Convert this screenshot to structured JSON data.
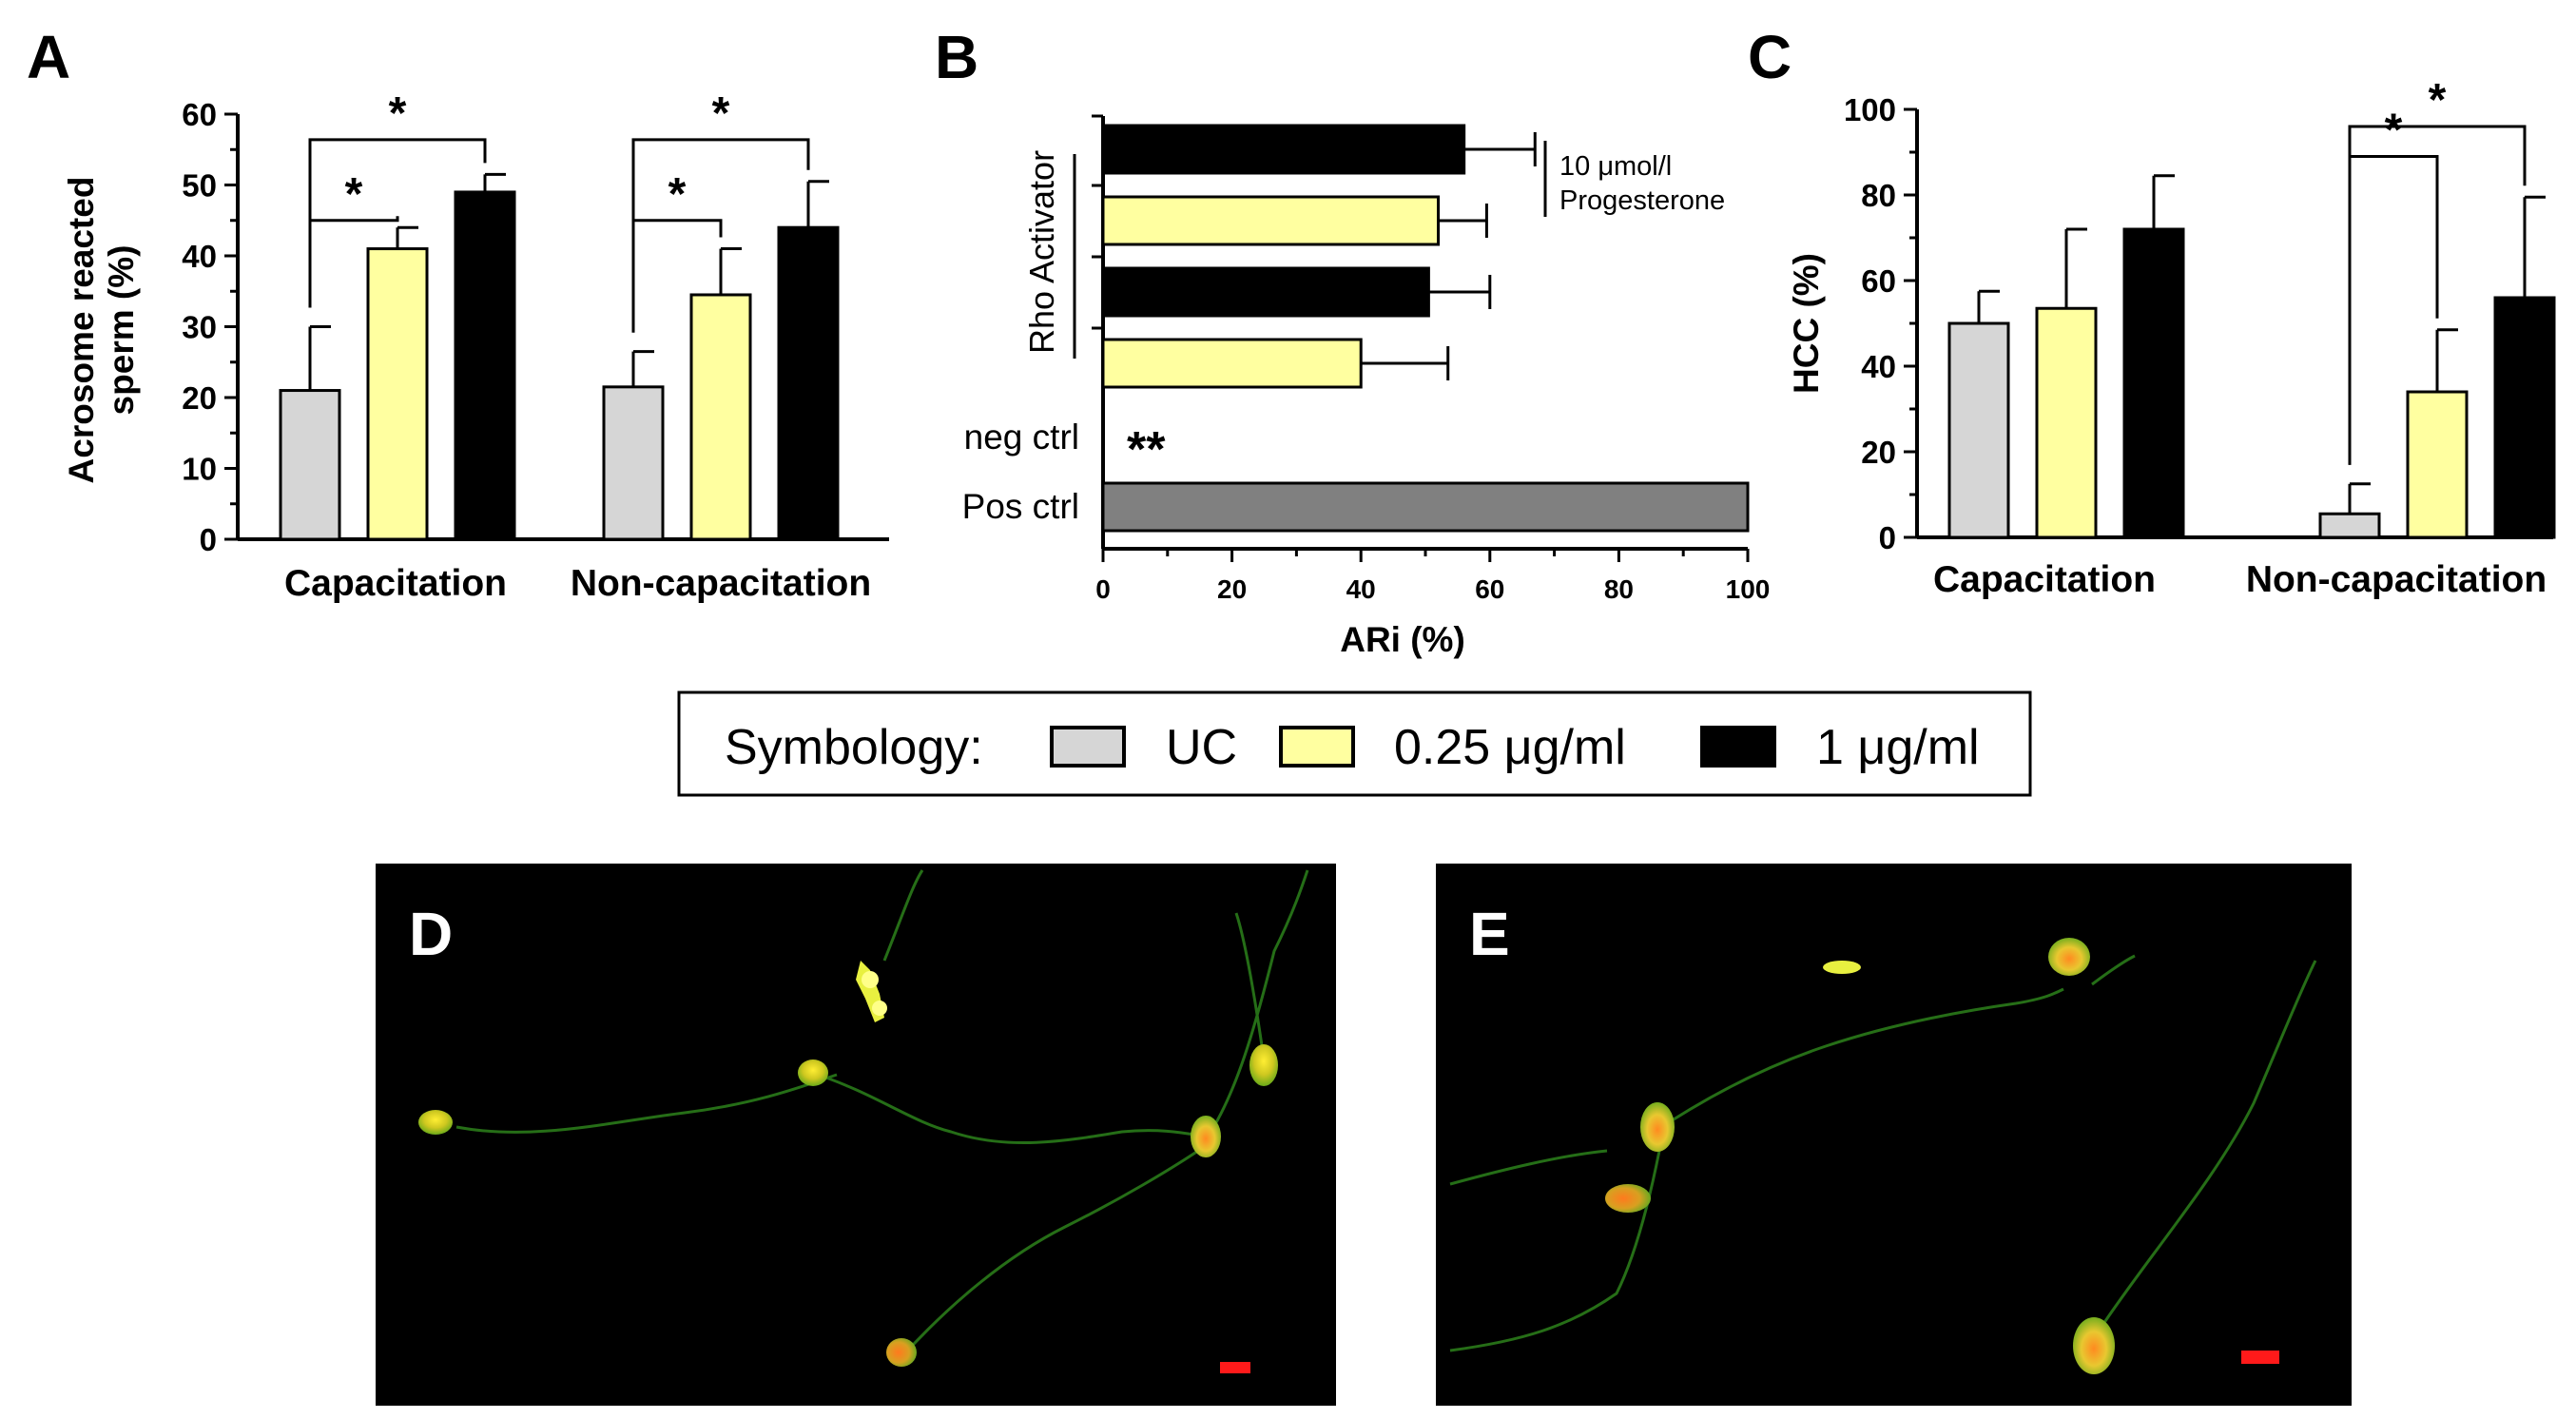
{
  "colors": {
    "UC": "#d6d6d6",
    "low": "#ffffa0",
    "high": "#000000",
    "pos_ctrl": "#808080"
  },
  "chart_data": [
    {
      "panel": "A",
      "type": "bar",
      "ylabel": "Acrosome reacted sperm (%)",
      "ylabel_lines": [
        "Acrosome reacted",
        "sperm (%)"
      ],
      "ylim": [
        0,
        60
      ],
      "yticks": [
        0,
        10,
        20,
        30,
        40,
        50,
        60
      ],
      "categories": [
        "Capacitation",
        "Non-capacitation"
      ],
      "series": [
        {
          "name": "UC",
          "values": [
            21,
            21.5
          ],
          "errors": [
            9,
            5
          ]
        },
        {
          "name": "0.25 μg/ml",
          "values": [
            41,
            34.5
          ],
          "errors": [
            3,
            6.5
          ]
        },
        {
          "name": "1 μg/ml",
          "values": [
            49,
            44
          ],
          "errors": [
            2.5,
            6.5
          ]
        }
      ],
      "significance": [
        {
          "group": 0,
          "from": 0,
          "to": 1,
          "label": "*"
        },
        {
          "group": 0,
          "from": 0,
          "to": 2,
          "label": "*"
        },
        {
          "group": 1,
          "from": 0,
          "to": 1,
          "label": "*"
        },
        {
          "group": 1,
          "from": 0,
          "to": 2,
          "label": "*"
        }
      ]
    },
    {
      "panel": "B",
      "type": "bar",
      "orientation": "horizontal",
      "xlabel": "ARi (%)",
      "xlim": [
        0,
        100
      ],
      "xticks": [
        0,
        20,
        40,
        60,
        80,
        100
      ],
      "group_label": "Rho Activator",
      "bars": [
        {
          "name": "1 μg/ml",
          "value": 56,
          "error": 11
        },
        {
          "name": "0.25 μg/ml",
          "value": 52,
          "error": 7.5
        },
        {
          "name": "1 μg/ml",
          "value": 50.5,
          "error": 9.5
        },
        {
          "name": "0.25 μg/ml",
          "value": 40,
          "error": 13.5
        }
      ],
      "bracket_label_lines": [
        "10 μmol/l",
        "Progesterone"
      ],
      "neg_ctrl": {
        "label": "neg ctrl",
        "value": 0,
        "annotation": "**"
      },
      "pos_ctrl": {
        "label": "Pos ctrl",
        "value": 100
      }
    },
    {
      "panel": "C",
      "type": "bar",
      "ylabel": "HCC (%)",
      "ylim": [
        0,
        100
      ],
      "yticks": [
        0,
        20,
        40,
        60,
        80,
        100
      ],
      "categories": [
        "Capacitation",
        "Non-capacitation"
      ],
      "series": [
        {
          "name": "UC",
          "values": [
            50,
            5.5
          ],
          "errors": [
            7.5,
            7
          ]
        },
        {
          "name": "0.25 μg/ml",
          "values": [
            53.5,
            34
          ],
          "errors": [
            18.5,
            14.5
          ]
        },
        {
          "name": "1 μg/ml",
          "values": [
            72,
            56
          ],
          "errors": [
            12.5,
            23.5
          ]
        }
      ],
      "significance": [
        {
          "group": 1,
          "from": 0,
          "to": 1,
          "label": "*"
        },
        {
          "group": 1,
          "from": 0,
          "to": 2,
          "label": "*"
        }
      ]
    }
  ],
  "legend": {
    "title": "Symbology:",
    "items": [
      {
        "label": "UC",
        "color": "#d6d6d6"
      },
      {
        "label": "0.25 μg/ml",
        "color": "#ffffa0"
      },
      {
        "label": "1 μg/ml",
        "color": "#000000"
      }
    ]
  },
  "photos": [
    {
      "panel": "D"
    },
    {
      "panel": "E"
    }
  ]
}
